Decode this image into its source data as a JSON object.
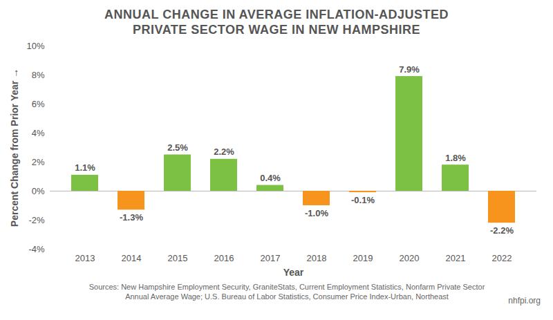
{
  "chart_data": {
    "type": "bar",
    "title": "ANNUAL CHANGE IN AVERAGE INFLATION-ADJUSTED PRIVATE SECTOR WAGE IN NEW HAMPSHIRE",
    "x_label": "Year",
    "y_label": "Percent Change from Prior Year",
    "categories": [
      "2013",
      "2014",
      "2015",
      "2016",
      "2017",
      "2018",
      "2019",
      "2020",
      "2021",
      "2022"
    ],
    "values": [
      1.1,
      -1.3,
      2.5,
      2.2,
      0.4,
      -1.0,
      -0.1,
      7.9,
      1.8,
      -2.2
    ],
    "value_labels": [
      "1.1%",
      "-1.3%",
      "2.5%",
      "2.2%",
      "0.4%",
      "-1.0%",
      "-0.1%",
      "7.9%",
      "1.8%",
      "-2.2%"
    ],
    "colors": [
      "#7cc143",
      "#f7941e",
      "#7cc143",
      "#7cc143",
      "#7cc143",
      "#f7941e",
      "#f7941e",
      "#7cc143",
      "#7cc143",
      "#f7941e"
    ],
    "ylim": [
      -4,
      10
    ],
    "yticks": [
      {
        "value": -4,
        "label": "-4%"
      },
      {
        "value": -2,
        "label": "-2%"
      },
      {
        "value": 0,
        "label": "0%"
      },
      {
        "value": 2,
        "label": "2%"
      },
      {
        "value": 4,
        "label": "4%"
      },
      {
        "value": 6,
        "label": "6%"
      },
      {
        "value": 8,
        "label": "8%"
      },
      {
        "value": 10,
        "label": "10%"
      }
    ],
    "grid": false,
    "data_labels": true,
    "source": "Sources: New Hampshire Employment Security, GraniteStats, Current Employment Statistics, Nonfarm Private Sector Annual Average Wage; U.S. Bureau of Labor Statistics, Consumer Price Index-Urban, Northeast",
    "credit": "nhfpi.org"
  }
}
